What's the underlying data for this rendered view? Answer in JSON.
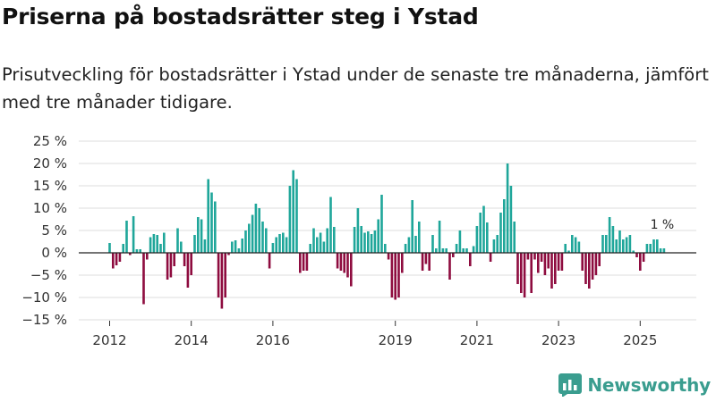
{
  "chart_data": {
    "type": "bar",
    "title": "Priserna på bostadsrätter steg i Ystad",
    "subtitle": "Prisutveckling för bostadsrätter i Ystad under de senaste tre månaderna, jämfört med tre månader tidigare.",
    "ylabel": "",
    "xlabel": "",
    "ylim": [
      -15,
      25
    ],
    "yticks": [
      -15,
      -10,
      -5,
      0,
      5,
      10,
      15,
      20,
      25
    ],
    "ytick_labels": [
      "−15 %",
      "−10 %",
      "−5 %",
      "0 %",
      "5 %",
      "10 %",
      "15 %",
      "20 %",
      "25 %"
    ],
    "xticks": [
      {
        "label": "2012",
        "index": 12
      },
      {
        "label": "2014",
        "index": 36
      },
      {
        "label": "2016",
        "index": 60
      },
      {
        "label": "2019",
        "index": 96
      },
      {
        "label": "2021",
        "index": 120
      },
      {
        "label": "2023",
        "index": 144
      },
      {
        "label": "2025",
        "index": 168
      }
    ],
    "annotation": {
      "text": "1 %",
      "index": 175
    },
    "positive_color": "#1fa69a",
    "negative_color": "#8e0c3f",
    "values": [
      0,
      0,
      0,
      0,
      0,
      0,
      0,
      0,
      0,
      0,
      0,
      0,
      2.2,
      -3.5,
      -2.8,
      -2.0,
      2.0,
      7.2,
      -0.5,
      8.2,
      0.8,
      0.8,
      -11.5,
      -1.5,
      3.5,
      4.2,
      4.0,
      2.0,
      4.5,
      -6.0,
      -5.5,
      -3.0,
      5.5,
      2.5,
      -3.0,
      -7.8,
      -5.0,
      4.0,
      8.0,
      7.5,
      3.0,
      16.5,
      13.5,
      11.5,
      -10.0,
      -12.5,
      -10.0,
      -0.5,
      2.5,
      2.8,
      1.0,
      3.2,
      5.0,
      6.5,
      8.5,
      11.0,
      10.0,
      7.0,
      5.5,
      -3.5,
      2.2,
      3.5,
      4.2,
      4.5,
      3.5,
      15.0,
      18.5,
      16.5,
      -4.5,
      -4.0,
      -4.0,
      2.0,
      5.5,
      3.5,
      4.5,
      2.5,
      5.5,
      12.5,
      5.8,
      -3.5,
      -4.0,
      -4.5,
      -5.5,
      -7.5,
      5.8,
      10.0,
      6.0,
      4.5,
      4.8,
      4.2,
      5.0,
      7.5,
      13.0,
      2.0,
      -1.5,
      -10.0,
      -10.5,
      -10.0,
      -4.5,
      2.0,
      3.5,
      11.8,
      3.8,
      7.0,
      -4.0,
      -2.5,
      -4.0,
      4.0,
      1.0,
      7.2,
      1.0,
      1.0,
      -6.0,
      -1.0,
      2.0,
      5.0,
      1.0,
      1.0,
      -3.0,
      1.5,
      6.0,
      9.0,
      10.5,
      6.8,
      -2.0,
      3.0,
      4.0,
      9.0,
      12.0,
      20.0,
      15.0,
      7.0,
      -7.0,
      -9.0,
      -10.0,
      -1.5,
      -9.0,
      -1.5,
      -4.5,
      -2.0,
      -5.0,
      -3.5,
      -8.0,
      -7.0,
      -4.0,
      -4.0,
      2.0,
      0.5,
      4.0,
      3.5,
      2.5,
      -4.0,
      -7.0,
      -8.0,
      -6.0,
      -5.0,
      -3.0,
      4.0,
      4.0,
      8.0,
      6.0,
      3.0,
      5.0,
      3.0,
      3.5,
      4.0,
      0.5,
      -1.0,
      -4.0,
      -2.0,
      2.0,
      2.0,
      3.0,
      3.0,
      1.0,
      1.0,
      0,
      0,
      0,
      0
    ]
  },
  "brand": {
    "name": "Newsworthy"
  }
}
